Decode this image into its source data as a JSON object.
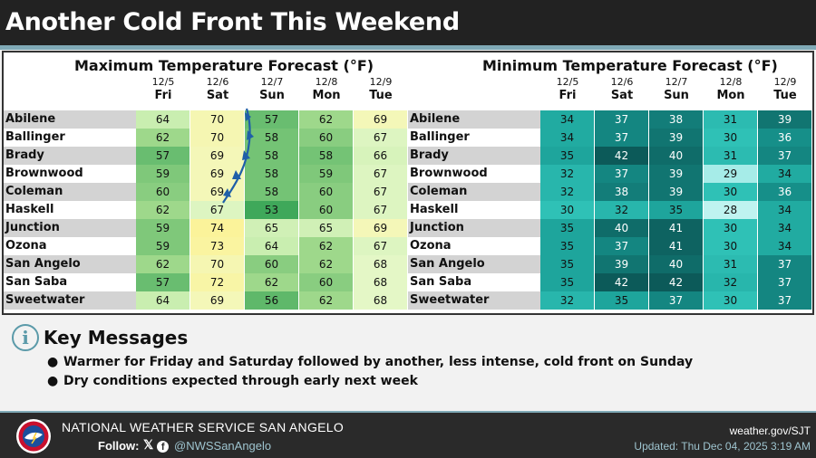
{
  "title": "Another Cold Front This Weekend",
  "max_table": {
    "title": "Maximum Temperature Forecast (°F)",
    "days": [
      {
        "date": "12/5",
        "weekday": "Fri"
      },
      {
        "date": "12/6",
        "weekday": "Sat"
      },
      {
        "date": "12/7",
        "weekday": "Sun"
      },
      {
        "date": "12/8",
        "weekday": "Mon"
      },
      {
        "date": "12/9",
        "weekday": "Tue"
      }
    ],
    "rows": [
      {
        "city": "Abilene",
        "values": [
          64,
          70,
          57,
          62,
          69
        ]
      },
      {
        "city": "Ballinger",
        "values": [
          62,
          70,
          58,
          60,
          67
        ]
      },
      {
        "city": "Brady",
        "values": [
          57,
          69,
          58,
          58,
          66
        ]
      },
      {
        "city": "Brownwood",
        "values": [
          59,
          69,
          58,
          59,
          67
        ]
      },
      {
        "city": "Coleman",
        "values": [
          60,
          69,
          58,
          60,
          67
        ]
      },
      {
        "city": "Haskell",
        "values": [
          62,
          67,
          53,
          60,
          67
        ]
      },
      {
        "city": "Junction",
        "values": [
          59,
          74,
          65,
          65,
          69
        ]
      },
      {
        "city": "Ozona",
        "values": [
          59,
          73,
          64,
          62,
          67
        ]
      },
      {
        "city": "San Angelo",
        "values": [
          62,
          70,
          60,
          62,
          68
        ]
      },
      {
        "city": "San Saba",
        "values": [
          57,
          72,
          62,
          60,
          68
        ]
      },
      {
        "city": "Sweetwater",
        "values": [
          64,
          69,
          56,
          62,
          68
        ]
      }
    ]
  },
  "min_table": {
    "title": "Minimum Temperature Forecast (°F)",
    "days": [
      {
        "date": "12/5",
        "weekday": "Fri"
      },
      {
        "date": "12/6",
        "weekday": "Sat"
      },
      {
        "date": "12/7",
        "weekday": "Sun"
      },
      {
        "date": "12/8",
        "weekday": "Mon"
      },
      {
        "date": "12/9",
        "weekday": "Tue"
      }
    ],
    "rows": [
      {
        "city": "Abilene",
        "values": [
          34,
          37,
          38,
          31,
          39
        ]
      },
      {
        "city": "Ballinger",
        "values": [
          34,
          37,
          39,
          30,
          36
        ]
      },
      {
        "city": "Brady",
        "values": [
          35,
          42,
          40,
          31,
          37
        ]
      },
      {
        "city": "Brownwood",
        "values": [
          32,
          37,
          39,
          29,
          34
        ]
      },
      {
        "city": "Coleman",
        "values": [
          32,
          38,
          39,
          30,
          36
        ]
      },
      {
        "city": "Haskell",
        "values": [
          30,
          32,
          35,
          28,
          34
        ]
      },
      {
        "city": "Junction",
        "values": [
          35,
          40,
          41,
          30,
          34
        ]
      },
      {
        "city": "Ozona",
        "values": [
          35,
          37,
          41,
          30,
          34
        ]
      },
      {
        "city": "San Angelo",
        "values": [
          35,
          39,
          40,
          31,
          37
        ]
      },
      {
        "city": "San Saba",
        "values": [
          35,
          42,
          42,
          32,
          37
        ]
      },
      {
        "city": "Sweetwater",
        "values": [
          32,
          35,
          37,
          30,
          37
        ]
      }
    ]
  },
  "key_messages": {
    "icon": "info-icon",
    "title": "Key Messages",
    "items": [
      "Warmer for Friday and Saturday followed by another, less intense, cold front on Sunday",
      "Dry conditions expected through early next week"
    ]
  },
  "footer": {
    "office": "NATIONAL WEATHER SERVICE SAN ANGELO",
    "follow_label": "Follow:",
    "social_icons": [
      "x-icon",
      "facebook-icon"
    ],
    "handle": "@NWSSanAngelo",
    "website": "weather.gov/SJT",
    "updated": "Updated: Thu Dec 04, 2025 3:19 AM"
  },
  "colors": {
    "title_bar": "#222222",
    "accent": "#7fa9b6",
    "front_line": "#1f5fa8"
  }
}
